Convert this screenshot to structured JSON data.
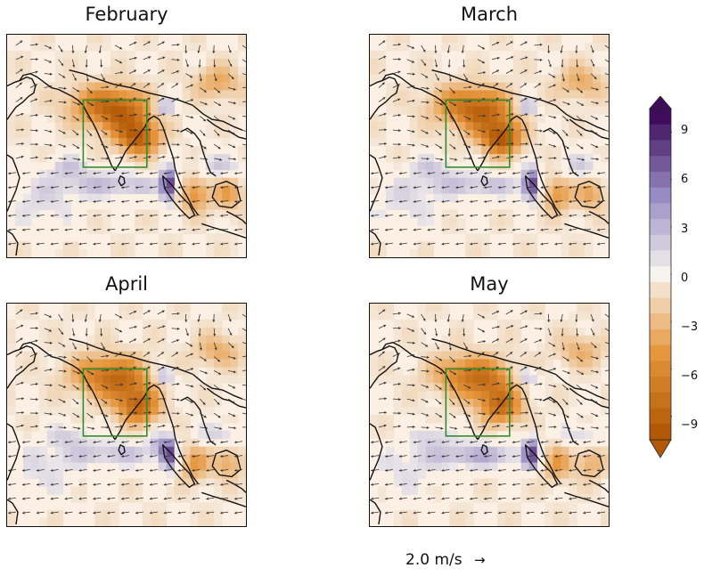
{
  "panels": [
    {
      "title": "February"
    },
    {
      "title": "March"
    },
    {
      "title": "April"
    },
    {
      "title": "May"
    }
  ],
  "colorbar": {
    "ticks": [
      "9",
      "6",
      "3",
      "0",
      "−3",
      "−6",
      "−9"
    ],
    "range": [
      -10.5,
      10.5
    ],
    "colormap": "PuOr diverging (orange negative, purple positive)",
    "negative_color": "#b35806",
    "positive_color": "#3f0c5c",
    "neutral_color": "#f7f3ee",
    "extend": "both"
  },
  "reference_vector": {
    "label": "2.0 m/s"
  },
  "box_color": "#2e8b2e",
  "coast_color": "#111111"
}
